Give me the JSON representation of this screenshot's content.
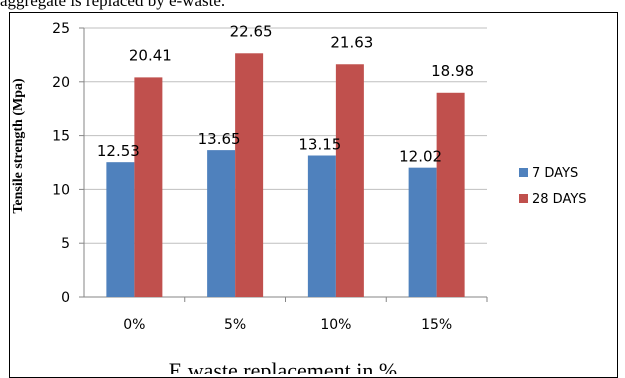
{
  "caption_top": "aggregate is replaced by e-waste.",
  "chart_data": {
    "type": "bar",
    "title": "",
    "categories": [
      "0%",
      "5%",
      "10%",
      "15%"
    ],
    "series": [
      {
        "name": "7 DAYS",
        "values": [
          12.53,
          13.65,
          13.15,
          12.02
        ],
        "color": "#4F81BD"
      },
      {
        "name": "28 DAYS",
        "values": [
          20.41,
          22.65,
          21.63,
          18.98
        ],
        "color": "#C0504D"
      }
    ],
    "xlabel": "E waste replacement in %",
    "ylabel": "Tensile strength (Mpa)",
    "ylim": [
      0,
      25
    ],
    "yticks": [
      0,
      5,
      10,
      15,
      20,
      25
    ],
    "grid": true,
    "legend_position": "right"
  }
}
